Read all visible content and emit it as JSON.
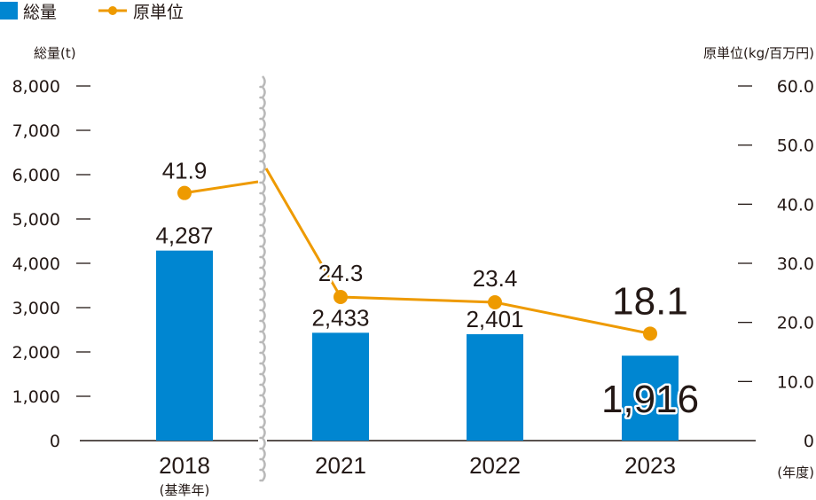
{
  "legend": {
    "bar_label": "総量",
    "line_label": "原単位"
  },
  "axes": {
    "left_title": "総量(t)",
    "right_title": "原単位(kg/百万円)",
    "x_unit": "(年度)"
  },
  "chart_data": {
    "type": "bar",
    "categories": [
      "2018",
      "2021",
      "2022",
      "2023"
    ],
    "category_notes": [
      "(基準年)",
      "",
      "",
      ""
    ],
    "series": [
      {
        "name": "総量",
        "type": "bar",
        "axis": "left",
        "values": [
          4287,
          2433,
          2401,
          1916
        ],
        "labels": [
          "4,287",
          "2,433",
          "2,401",
          "1,916"
        ],
        "color": "#0086D1"
      },
      {
        "name": "原単位",
        "type": "line",
        "axis": "right",
        "values": [
          41.9,
          24.3,
          23.4,
          18.1
        ],
        "labels": [
          "41.9",
          "24.3",
          "23.4",
          "18.1"
        ],
        "color": "#EE9A00"
      }
    ],
    "left_axis": {
      "ylim": [
        0,
        8000
      ],
      "ticks": [
        "0",
        "1,000",
        "2,000",
        "3,000",
        "4,000",
        "5,000",
        "6,000",
        "7,000",
        "8,000"
      ]
    },
    "right_axis": {
      "ylim": [
        0,
        60
      ],
      "ticks": [
        "0",
        "10.0",
        "20.0",
        "30.0",
        "40.0",
        "50.0",
        "60.0"
      ]
    },
    "axis_break": "between 2018 and 2021",
    "grid": false,
    "legend_position": "top-left"
  }
}
